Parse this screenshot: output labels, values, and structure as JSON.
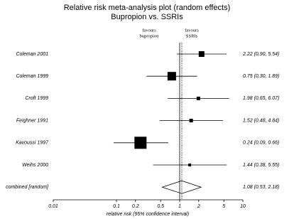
{
  "chart_data": {
    "type": "forest",
    "title": "Relative risk meta-analysis plot (random effects)",
    "subtitle": "Bupropion vs. SSRIs",
    "annotations": [
      [
        "favours",
        "bupropion"
      ],
      [
        "favours",
        "SSRIs"
      ]
    ],
    "x_label": "relative risk (95% confidence interval)",
    "categories": [
      "Coleman 2001",
      "Coleman 1999",
      "Croft 1999",
      "Feighner 1991",
      "Kavoussi 1997",
      "Weihs 2000",
      "combined [random]"
    ],
    "values": [
      2.22,
      0.75,
      1.98,
      1.52,
      0.24,
      1.44,
      1.08
    ],
    "lower": [
      0.9,
      0.3,
      0.65,
      0.48,
      0.09,
      0.38,
      0.53
    ],
    "upper": [
      5.54,
      1.89,
      6.07,
      4.84,
      0.66,
      5.55,
      2.18
    ],
    "value_labels": [
      "2.22 (0.90, 5.54)",
      "0.75 (0.30, 1.89)",
      "1.98 (0.65, 6.07)",
      "1.52 (0.48, 4.84)",
      "0.24 (0.09, 0.66)",
      "1.44 (0.38, 5.55)",
      "1.08 (0.53, 2.18)"
    ],
    "weights": [
      8,
      12,
      5,
      5,
      17,
      4,
      null
    ],
    "xscale": "log",
    "xlim": [
      0.01,
      10
    ],
    "xticks": [
      0.01,
      0.1,
      0.2,
      0.5,
      1,
      2,
      5,
      10
    ],
    "reference": 1,
    "color": "#000000"
  }
}
